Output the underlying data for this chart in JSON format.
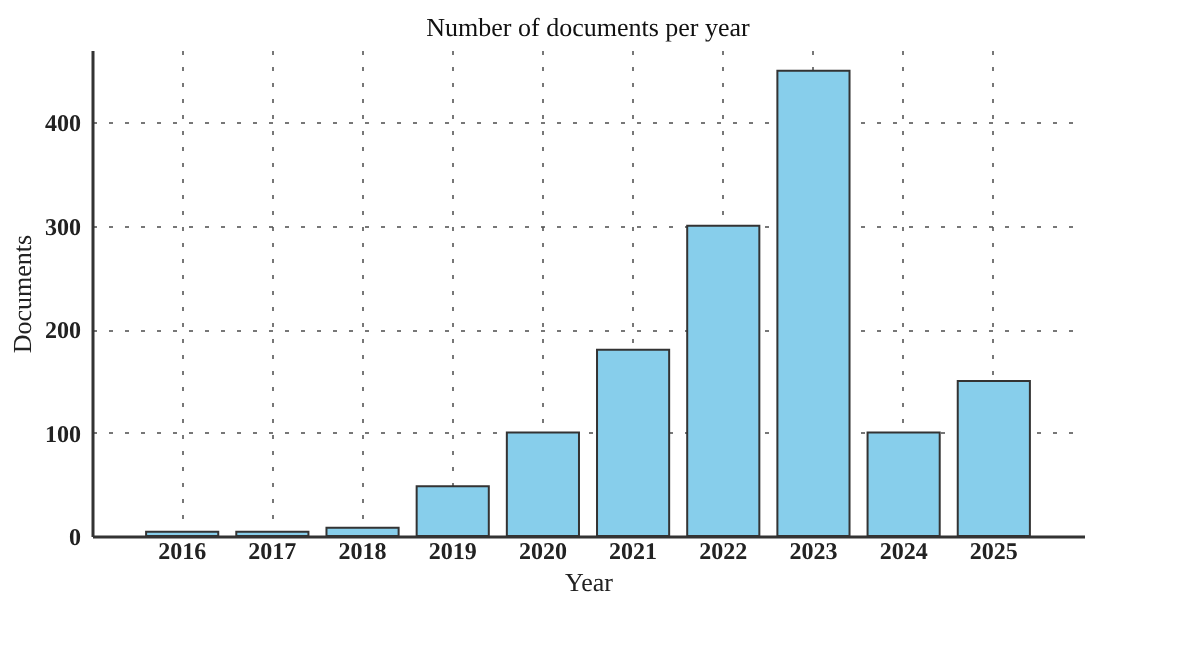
{
  "chart_data": {
    "type": "bar",
    "title": "Number of documents per year",
    "xlabel": "Year",
    "ylabel": "Documents",
    "categories": [
      "2016",
      "2017",
      "2018",
      "2019",
      "2020",
      "2021",
      "2022",
      "2023",
      "2024",
      "2025"
    ],
    "values": [
      4,
      4,
      8,
      48,
      100,
      180,
      300,
      450,
      100,
      150
    ],
    "color": "#87ceeb",
    "ylim": [
      0,
      470
    ],
    "yticks": [
      0,
      100,
      200,
      300,
      400
    ],
    "grid": true
  }
}
